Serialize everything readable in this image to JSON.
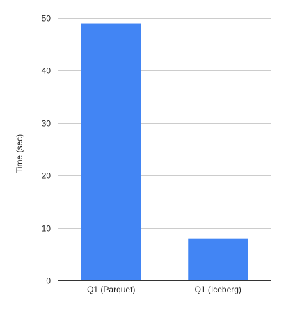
{
  "chart_data": {
    "type": "bar",
    "title": "",
    "xlabel": "",
    "ylabel": "Time (sec)",
    "categories": [
      "Q1 (Parquet)",
      "Q1 (Iceberg)"
    ],
    "values": [
      49,
      8
    ],
    "ylim": [
      0,
      50
    ],
    "yticks": [
      0,
      10,
      20,
      30,
      40,
      50
    ],
    "grid": true,
    "legend": "none",
    "bar_color": "#4285f4",
    "grid_color": "#cccccc",
    "axis_color": "#333333"
  }
}
